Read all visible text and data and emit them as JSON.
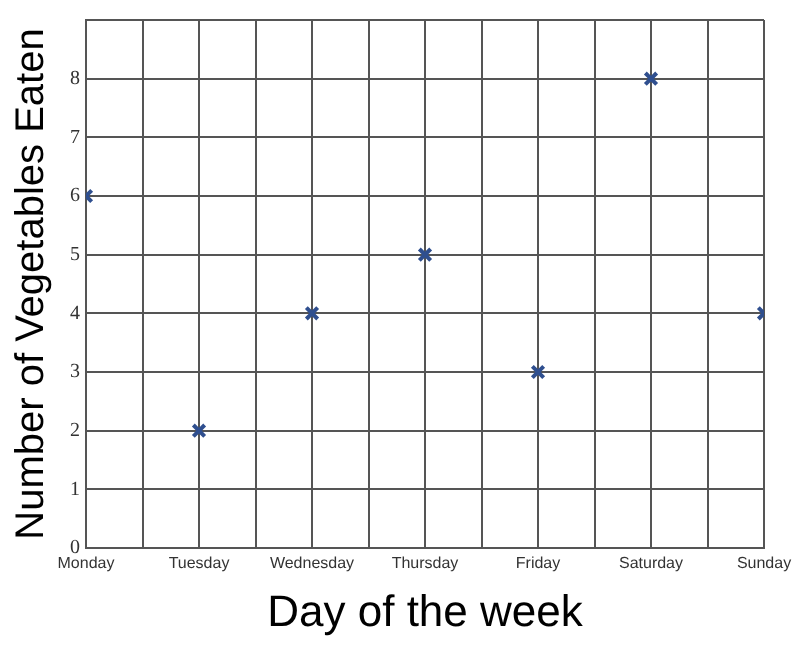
{
  "chart_data": {
    "type": "scatter",
    "xlabel": "Day of the week",
    "ylabel": "Number of Vegetables Eaten",
    "categories": [
      "Monday",
      "Tuesday",
      "Wednesday",
      "Thursday",
      "Friday",
      "Saturday",
      "Sunday"
    ],
    "series": [
      {
        "color": "#2f4f8f",
        "values": [
          6,
          2,
          4,
          5,
          3,
          8,
          4
        ]
      }
    ],
    "ylim": [
      0,
      9
    ],
    "yticks": [
      0,
      1,
      2,
      3,
      4,
      5,
      6,
      7,
      8,
      {
        "value": 9,
        "label": null
      }
    ],
    "grid": true,
    "marker": "cross",
    "legend": false
  }
}
